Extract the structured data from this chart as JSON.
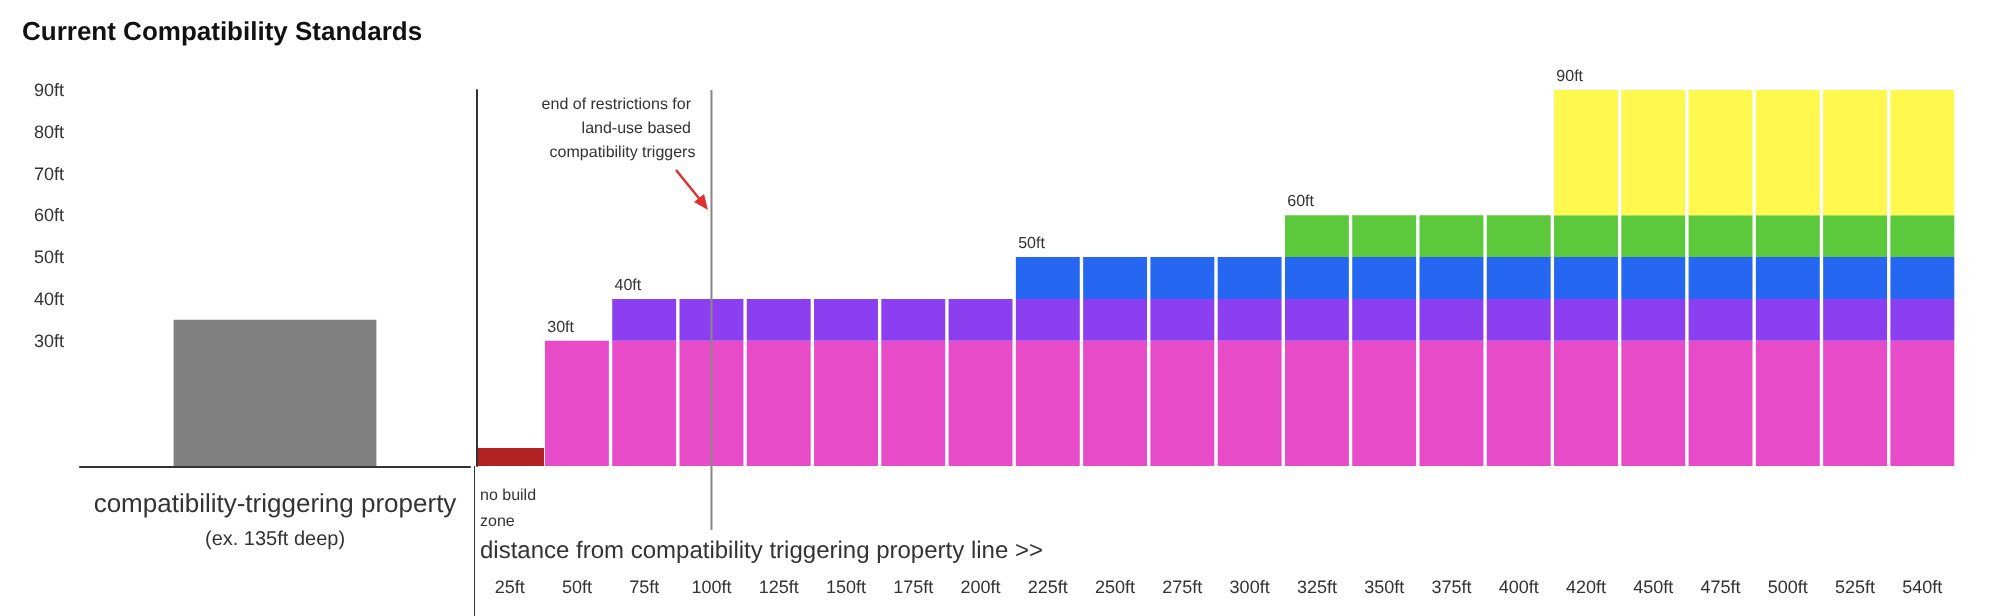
{
  "chart_data": [
    {
      "type": "bar",
      "title": "Current Compatibility Standards",
      "categories": [
        "compatibility-triggering property"
      ],
      "values": [
        35
      ],
      "color": "#808080",
      "ylim": [
        0,
        90
      ],
      "yticks": [
        {
          "value": 30,
          "label": "30ft"
        },
        {
          "value": 40,
          "label": "40ft"
        },
        {
          "value": 50,
          "label": "50ft"
        },
        {
          "value": 60,
          "label": "60ft"
        },
        {
          "value": 70,
          "label": "70ft"
        },
        {
          "value": 80,
          "label": "80ft"
        },
        {
          "value": 90,
          "label": "90ft"
        }
      ],
      "annotations": [
        "(ex. 135ft deep)"
      ]
    },
    {
      "type": "bar",
      "stacked": true,
      "xlabel": "distance from compatibility triggering property line >>",
      "tick_labels": "x",
      "ylim": [
        0,
        90
      ],
      "categories": [
        "25ft",
        "50ft",
        "75ft",
        "100ft",
        "125ft",
        "150ft",
        "175ft",
        "200ft",
        "225ft",
        "250ft",
        "275ft",
        "300ft",
        "325ft",
        "350ft",
        "375ft",
        "400ft",
        "420ft",
        "450ft",
        "475ft",
        "500ft",
        "525ft",
        "540ft"
      ],
      "series": [
        {
          "color": "#e84bc8",
          "values": [
            null,
            30,
            30,
            30,
            30,
            30,
            30,
            30,
            30,
            30,
            30,
            30,
            30,
            30,
            30,
            30,
            30,
            30,
            30,
            30,
            30,
            30
          ]
        },
        {
          "color": "#8b3ff0",
          "values": [
            null,
            null,
            10,
            10,
            10,
            10,
            10,
            10,
            10,
            10,
            10,
            10,
            10,
            10,
            10,
            10,
            10,
            10,
            10,
            10,
            10,
            10
          ]
        },
        {
          "color": "#2567f0",
          "values": [
            null,
            null,
            null,
            null,
            null,
            null,
            null,
            null,
            10,
            10,
            10,
            10,
            10,
            10,
            10,
            10,
            10,
            10,
            10,
            10,
            10,
            10
          ]
        },
        {
          "color": "#5cc83c",
          "values": [
            null,
            null,
            null,
            null,
            null,
            null,
            null,
            null,
            null,
            null,
            null,
            null,
            10,
            10,
            10,
            10,
            10,
            10,
            10,
            10,
            10,
            10
          ]
        },
        {
          "color": "#fff84f",
          "values": [
            null,
            null,
            null,
            null,
            null,
            null,
            null,
            null,
            null,
            null,
            null,
            null,
            null,
            null,
            null,
            null,
            30,
            30,
            30,
            30,
            30,
            30
          ]
        }
      ],
      "annotations": [
        {
          "text": "30ft",
          "x": "50ft",
          "y": 30
        },
        {
          "text": "40ft",
          "x": "75ft",
          "y": 40
        },
        {
          "text": "50ft",
          "x": "225ft",
          "y": 50
        },
        {
          "text": "60ft",
          "x": "325ft",
          "y": 60
        },
        {
          "text": "90ft",
          "x": "420ft",
          "y": 90
        },
        "no build zone"
      ],
      "ref_lines": [
        {
          "axis": "x",
          "value": "100ft",
          "label": "end of restrictions for land-use based compatibility triggers"
        }
      ]
    }
  ]
}
